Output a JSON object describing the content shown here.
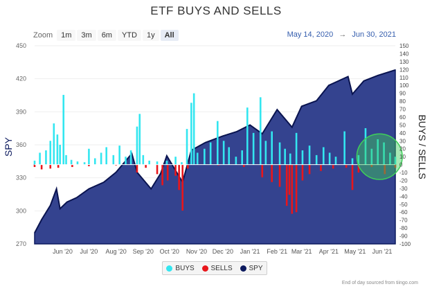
{
  "title": "ETF BUYS AND SELLS",
  "zoom": {
    "label": "Zoom",
    "buttons": [
      "1m",
      "3m",
      "6m",
      "YTD",
      "1y",
      "All"
    ],
    "active": "All"
  },
  "range": {
    "from": "May 14, 2020",
    "arrow": "→",
    "to": "Jun 30, 2021"
  },
  "legend": [
    {
      "name": "BUYS",
      "color": "#33e6f0"
    },
    {
      "name": "SELLS",
      "color": "#e8161b"
    },
    {
      "name": "SPY",
      "color": "#0c1a5e"
    }
  ],
  "credits": "End of day sourced from tiingo.com",
  "chart_data": {
    "type": "area",
    "x_range": [
      "2020-05-14",
      "2021-06-30"
    ],
    "x_ticks": [
      "Jun '20",
      "Jul '20",
      "Aug '20",
      "Sep '20",
      "Oct '20",
      "Nov '20",
      "Dec '20",
      "Jan '21",
      "Feb '21",
      "Mar '21",
      "Apr '21",
      "May '21",
      "Jun '21"
    ],
    "y_left": {
      "label": "SPY",
      "range": [
        270,
        450
      ],
      "ticks": [
        270,
        300,
        330,
        360,
        390,
        420,
        450
      ]
    },
    "y_right": {
      "label": "BUYS / SELLS",
      "range": [
        -100,
        150
      ],
      "ticks": [
        -100,
        -90,
        -80,
        -70,
        -60,
        -50,
        -40,
        -30,
        -20,
        -10,
        0,
        10,
        20,
        30,
        40,
        50,
        60,
        70,
        80,
        90,
        100,
        110,
        120,
        130,
        140,
        150
      ]
    },
    "spy": {
      "name": "SPY",
      "color": "#2f3f8f",
      "points": [
        [
          "2020-05-14",
          280
        ],
        [
          "2020-05-22",
          292
        ],
        [
          "2020-06-01",
          305
        ],
        [
          "2020-06-08",
          320
        ],
        [
          "2020-06-12",
          302
        ],
        [
          "2020-06-20",
          308
        ],
        [
          "2020-07-01",
          312
        ],
        [
          "2020-07-15",
          320
        ],
        [
          "2020-08-01",
          326
        ],
        [
          "2020-08-15",
          335
        ],
        [
          "2020-09-02",
          352
        ],
        [
          "2020-09-08",
          335
        ],
        [
          "2020-09-24",
          320
        ],
        [
          "2020-10-05",
          334
        ],
        [
          "2020-10-12",
          350
        ],
        [
          "2020-10-30",
          326
        ],
        [
          "2020-11-09",
          355
        ],
        [
          "2020-11-25",
          362
        ],
        [
          "2020-12-15",
          368
        ],
        [
          "2020-12-31",
          372
        ],
        [
          "2021-01-15",
          378
        ],
        [
          "2021-01-29",
          370
        ],
        [
          "2021-02-15",
          392
        ],
        [
          "2021-03-04",
          376
        ],
        [
          "2021-03-15",
          395
        ],
        [
          "2021-04-01",
          400
        ],
        [
          "2021-04-15",
          414
        ],
        [
          "2021-05-07",
          422
        ],
        [
          "2021-05-12",
          406
        ],
        [
          "2021-05-25",
          418
        ],
        [
          "2021-06-10",
          423
        ],
        [
          "2021-06-30",
          428
        ]
      ]
    },
    "buys": {
      "name": "BUYS",
      "color": "#33e6f0",
      "points": [
        [
          "2020-05-14",
          5
        ],
        [
          "2020-05-20",
          15
        ],
        [
          "2020-05-27",
          18
        ],
        [
          "2020-06-01",
          30
        ],
        [
          "2020-06-05",
          52
        ],
        [
          "2020-06-09",
          38
        ],
        [
          "2020-06-12",
          25
        ],
        [
          "2020-06-16",
          88
        ],
        [
          "2020-06-19",
          12
        ],
        [
          "2020-06-25",
          6
        ],
        [
          "2020-07-02",
          4
        ],
        [
          "2020-07-10",
          3
        ],
        [
          "2020-07-15",
          20
        ],
        [
          "2020-07-22",
          8
        ],
        [
          "2020-07-29",
          15
        ],
        [
          "2020-08-04",
          22
        ],
        [
          "2020-08-12",
          12
        ],
        [
          "2020-08-19",
          24
        ],
        [
          "2020-08-26",
          10
        ],
        [
          "2020-09-01",
          18
        ],
        [
          "2020-09-08",
          48
        ],
        [
          "2020-09-11",
          64
        ],
        [
          "2020-09-15",
          12
        ],
        [
          "2020-09-22",
          5
        ],
        [
          "2020-10-01",
          4
        ],
        [
          "2020-10-12",
          5
        ],
        [
          "2020-10-22",
          10
        ],
        [
          "2020-10-29",
          3
        ],
        [
          "2020-11-04",
          45
        ],
        [
          "2020-11-09",
          78
        ],
        [
          "2020-11-12",
          90
        ],
        [
          "2020-11-16",
          15
        ],
        [
          "2020-11-24",
          20
        ],
        [
          "2020-12-01",
          28
        ],
        [
          "2020-12-09",
          55
        ],
        [
          "2020-12-16",
          30
        ],
        [
          "2020-12-22",
          22
        ],
        [
          "2020-12-30",
          10
        ],
        [
          "2021-01-06",
          18
        ],
        [
          "2021-01-12",
          72
        ],
        [
          "2021-01-19",
          40
        ],
        [
          "2021-01-27",
          85
        ],
        [
          "2021-02-02",
          30
        ],
        [
          "2021-02-09",
          42
        ],
        [
          "2021-02-18",
          28
        ],
        [
          "2021-02-24",
          20
        ],
        [
          "2021-03-02",
          14
        ],
        [
          "2021-03-09",
          40
        ],
        [
          "2021-03-16",
          18
        ],
        [
          "2021-03-24",
          24
        ],
        [
          "2021-04-01",
          12
        ],
        [
          "2021-04-09",
          22
        ],
        [
          "2021-04-16",
          15
        ],
        [
          "2021-04-23",
          10
        ],
        [
          "2021-05-03",
          42
        ],
        [
          "2021-05-12",
          8
        ],
        [
          "2021-05-19",
          12
        ],
        [
          "2021-05-27",
          46
        ],
        [
          "2021-06-03",
          20
        ],
        [
          "2021-06-10",
          32
        ],
        [
          "2021-06-17",
          28
        ],
        [
          "2021-06-24",
          15
        ],
        [
          "2021-06-30",
          10
        ]
      ]
    },
    "sells": {
      "name": "SELLS",
      "color": "#e8161b",
      "points": [
        [
          "2020-05-14",
          -3
        ],
        [
          "2020-05-22",
          -6
        ],
        [
          "2020-06-01",
          -5
        ],
        [
          "2020-06-10",
          -4
        ],
        [
          "2020-06-26",
          -3
        ],
        [
          "2020-07-15",
          -2
        ],
        [
          "2020-08-15",
          -1
        ],
        [
          "2020-09-08",
          -10
        ],
        [
          "2020-09-18",
          -4
        ],
        [
          "2020-10-01",
          -12
        ],
        [
          "2020-10-07",
          -26
        ],
        [
          "2020-10-13",
          -20
        ],
        [
          "2020-10-22",
          -14
        ],
        [
          "2020-10-26",
          -32
        ],
        [
          "2020-10-30",
          -58
        ],
        [
          "2020-11-05",
          -5
        ],
        [
          "2020-12-10",
          -1
        ],
        [
          "2021-01-08",
          -3
        ],
        [
          "2021-01-29",
          -16
        ],
        [
          "2021-02-09",
          -22
        ],
        [
          "2021-02-18",
          -28
        ],
        [
          "2021-02-26",
          -52
        ],
        [
          "2021-03-01",
          -38
        ],
        [
          "2021-03-04",
          -62
        ],
        [
          "2021-03-09",
          -60
        ],
        [
          "2021-03-16",
          -20
        ],
        [
          "2021-03-24",
          -12
        ],
        [
          "2021-04-06",
          -8
        ],
        [
          "2021-04-20",
          -5
        ],
        [
          "2021-05-05",
          -4
        ],
        [
          "2021-05-12",
          -32
        ],
        [
          "2021-05-19",
          -10
        ],
        [
          "2021-06-03",
          -3
        ],
        [
          "2021-06-18",
          -12
        ],
        [
          "2021-06-30",
          -4
        ]
      ]
    },
    "annotation": {
      "type": "circle",
      "center": [
        "2021-06-12",
        10
      ],
      "radius_days": 26,
      "color": "#3fcf5a"
    }
  }
}
